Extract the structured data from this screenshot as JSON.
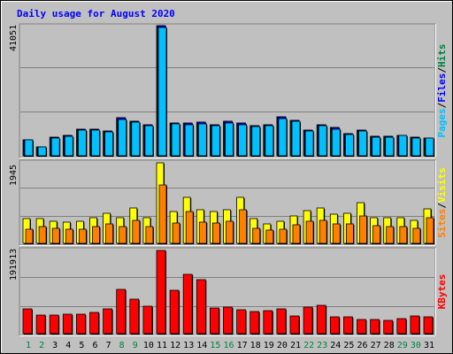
{
  "chart_data": {
    "type": "bar",
    "title": "Daily usage for August 2020",
    "categories": [
      "1",
      "2",
      "3",
      "4",
      "5",
      "6",
      "7",
      "8",
      "9",
      "10",
      "11",
      "12",
      "13",
      "14",
      "15",
      "16",
      "17",
      "18",
      "19",
      "20",
      "21",
      "22",
      "23",
      "24",
      "25",
      "26",
      "27",
      "28",
      "29",
      "30",
      "31"
    ],
    "weekend_days": [
      "1",
      "2",
      "8",
      "9",
      "15",
      "16",
      "22",
      "23",
      "29",
      "30"
    ],
    "panels": [
      {
        "name": "top",
        "max_label": "41051",
        "ylim": [
          0,
          41051
        ],
        "legend": [
          {
            "label": "Pages",
            "color": "#00c0ff"
          },
          {
            "label": "/",
            "color": "#000000"
          },
          {
            "label": "Files",
            "color": "#0000ff"
          },
          {
            "label": "/",
            "color": "#000000"
          },
          {
            "label": "Hits",
            "color": "#008040"
          }
        ],
        "series": [
          {
            "name": "Hits",
            "color": "#008040",
            "values": [
              5100,
              2900,
              5900,
              6300,
              8500,
              8300,
              7800,
              11900,
              10900,
              9700,
              41051,
              10400,
              10200,
              10500,
              9800,
              10800,
              10200,
              9500,
              9900,
              12200,
              11300,
              8100,
              9900,
              8800,
              6900,
              8200,
              6200,
              6100,
              6500,
              5900,
              5700
            ]
          },
          {
            "name": "Files",
            "color": "#0000ff",
            "values": [
              5100,
              2900,
              5900,
              6300,
              8500,
              8300,
              7800,
              11900,
              10900,
              9700,
              41051,
              10400,
              10200,
              10500,
              9800,
              10800,
              10200,
              9500,
              9900,
              12200,
              11300,
              8100,
              9900,
              8800,
              6900,
              8200,
              6200,
              6100,
              6500,
              5900,
              5700
            ]
          },
          {
            "name": "Pages",
            "color": "#00c0ff",
            "values": [
              4900,
              2800,
              5700,
              6100,
              8200,
              8000,
              7600,
              11500,
              10500,
              9400,
              40600,
              10000,
              9800,
              10100,
              9400,
              10400,
              9800,
              9200,
              9600,
              11800,
              10900,
              7800,
              9600,
              8500,
              6700,
              7900,
              6000,
              5900,
              6300,
              5700,
              5500
            ]
          }
        ]
      },
      {
        "name": "middle",
        "max_label": "1945",
        "ylim": [
          0,
          1945
        ],
        "legend": [
          {
            "label": "Sites",
            "color": "#ff8000"
          },
          {
            "label": "/",
            "color": "#000000"
          },
          {
            "label": "Visits",
            "color": "#ffff00"
          }
        ],
        "series": [
          {
            "name": "Visits",
            "color": "#ffff00",
            "values": [
              590,
              590,
              540,
              520,
              540,
              620,
              730,
              630,
              860,
              630,
              1945,
              770,
              1120,
              820,
              760,
              820,
              1120,
              590,
              470,
              540,
              660,
              790,
              860,
              710,
              720,
              980,
              630,
              620,
              620,
              550,
              840
            ]
          },
          {
            "name": "Sites",
            "color": "#ff8000",
            "values": [
              350,
              400,
              360,
              340,
              350,
              410,
              460,
              400,
              560,
              410,
              1400,
              500,
              760,
              520,
              500,
              540,
              820,
              370,
              330,
              350,
              440,
              540,
              560,
              460,
              480,
              660,
              420,
              410,
              400,
              370,
              610
            ]
          }
        ]
      },
      {
        "name": "bottom",
        "max_label": "191913",
        "ylim": [
          0,
          191913
        ],
        "legend": [
          {
            "label": "KBytes",
            "color": "#ff0000"
          }
        ],
        "series": [
          {
            "name": "KBytes",
            "color": "#ff0000",
            "values": [
              58000,
              42000,
              42000,
              44000,
              44000,
              50000,
              58000,
              103000,
              79000,
              64000,
              191913,
              100000,
              137000,
              124000,
              60000,
              61000,
              56000,
              52000,
              53000,
              57000,
              41000,
              62000,
              66000,
              39000,
              38000,
              32000,
              33000,
              30000,
              34000,
              40000,
              39000
            ]
          }
        ]
      }
    ]
  }
}
